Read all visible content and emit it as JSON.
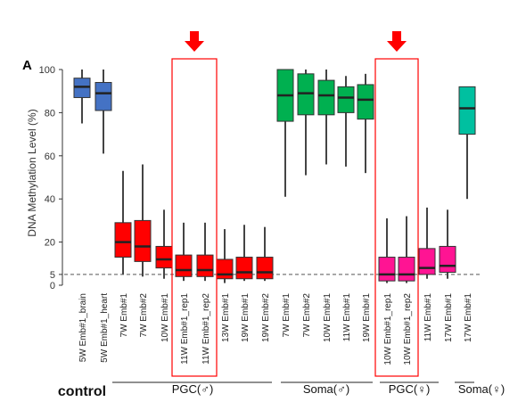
{
  "chart_data": {
    "type": "box",
    "panel_label": "A",
    "ylabel": "DNA Methylation Level (%)",
    "ylim": [
      0,
      100
    ],
    "y_ticks": [
      0,
      5,
      20,
      40,
      60,
      80,
      100
    ],
    "reference_line": 5,
    "categories": [
      {
        "label": "5W Emb#1_brain",
        "group": "control",
        "color": "#4472c4",
        "whisker_low": 75,
        "q1": 87,
        "median": 92,
        "q3": 96,
        "whisker_high": 100
      },
      {
        "label": "5W Emb#1_heart",
        "group": "control",
        "color": "#4472c4",
        "whisker_low": 61,
        "q1": 81,
        "median": 89,
        "q3": 94,
        "whisker_high": 100
      },
      {
        "label": "7W Emb#1",
        "group": "pgc_male",
        "color": "#ff0000",
        "whisker_low": 5,
        "q1": 13,
        "median": 20,
        "q3": 29,
        "whisker_high": 53
      },
      {
        "label": "7W Emb#2",
        "group": "pgc_male",
        "color": "#ff0000",
        "whisker_low": 4,
        "q1": 11,
        "median": 18,
        "q3": 30,
        "whisker_high": 56
      },
      {
        "label": "10W Emb#1",
        "group": "pgc_male",
        "color": "#ff0000",
        "whisker_low": 3,
        "q1": 8,
        "median": 12,
        "q3": 18,
        "whisker_high": 35
      },
      {
        "label": "11W Emb#1_rep1",
        "group": "pgc_male",
        "color": "#ff0000",
        "whisker_low": 2,
        "q1": 4,
        "median": 7,
        "q3": 14,
        "whisker_high": 29
      },
      {
        "label": "11W Emb#1_rep2",
        "group": "pgc_male",
        "color": "#ff0000",
        "whisker_low": 2,
        "q1": 4,
        "median": 7,
        "q3": 14,
        "whisker_high": 29
      },
      {
        "label": "13W Emb#1",
        "group": "pgc_male",
        "color": "#ff0000",
        "whisker_low": 1,
        "q1": 3,
        "median": 5,
        "q3": 12,
        "whisker_high": 26
      },
      {
        "label": "19W Emb#1",
        "group": "pgc_male",
        "color": "#ff0000",
        "whisker_low": 2,
        "q1": 3,
        "median": 6,
        "q3": 13,
        "whisker_high": 28
      },
      {
        "label": "19W Emb#2",
        "group": "pgc_male",
        "color": "#ff0000",
        "whisker_low": 2,
        "q1": 3,
        "median": 6,
        "q3": 13,
        "whisker_high": 27
      },
      {
        "label": "7W Emb#1",
        "group": "soma_male",
        "color": "#00b050",
        "whisker_low": 41,
        "q1": 76,
        "median": 88,
        "q3": 100,
        "whisker_high": 100
      },
      {
        "label": "7W Emb#2",
        "group": "soma_male",
        "color": "#00b050",
        "whisker_low": 51,
        "q1": 79,
        "median": 89,
        "q3": 98,
        "whisker_high": 100
      },
      {
        "label": "10W Emb#1",
        "group": "soma_male",
        "color": "#00b050",
        "whisker_low": 56,
        "q1": 79,
        "median": 88,
        "q3": 95,
        "whisker_high": 100
      },
      {
        "label": "11W Emb#1",
        "group": "soma_male",
        "color": "#00b050",
        "whisker_low": 55,
        "q1": 80,
        "median": 87,
        "q3": 92,
        "whisker_high": 97
      },
      {
        "label": "19W Emb#1",
        "group": "soma_male",
        "color": "#00b050",
        "whisker_low": 52,
        "q1": 77,
        "median": 86,
        "q3": 93,
        "whisker_high": 98
      },
      {
        "label": "10W Emb#1_rep1",
        "group": "pgc_female",
        "color": "#ff1493",
        "whisker_low": 1,
        "q1": 2,
        "median": 5,
        "q3": 13,
        "whisker_high": 31
      },
      {
        "label": "10W Emb#1_rep2",
        "group": "pgc_female",
        "color": "#ff1493",
        "whisker_low": 1,
        "q1": 2,
        "median": 5,
        "q3": 13,
        "whisker_high": 32
      },
      {
        "label": "11W Emb#1",
        "group": "pgc_female",
        "color": "#ff1493",
        "whisker_low": 3,
        "q1": 5,
        "median": 8,
        "q3": 17,
        "whisker_high": 36
      },
      {
        "label": "17W Emb#1",
        "group": "pgc_female",
        "color": "#ff1493",
        "whisker_low": 3,
        "q1": 6,
        "median": 9,
        "q3": 18,
        "whisker_high": 35
      },
      {
        "label": "17W Emb#1",
        "group": "soma_female",
        "color": "#00c0a0",
        "whisker_low": 40,
        "q1": 70,
        "median": 82,
        "q3": 92,
        "whisker_high": 92
      }
    ],
    "groups": [
      {
        "key": "control",
        "label": "control"
      },
      {
        "key": "pgc_male",
        "label": "PGC(♂)"
      },
      {
        "key": "soma_male",
        "label": "Soma(♂)"
      },
      {
        "key": "pgc_female",
        "label": "PGC(♀)"
      },
      {
        "key": "soma_female",
        "label": "Soma(♀)"
      }
    ],
    "highlights": [
      {
        "categories": [
          "11W Emb#1_rep1",
          "11W Emb#1_rep2"
        ],
        "group": "pgc_male",
        "color": "#ff0000"
      },
      {
        "categories": [
          "10W Emb#1_rep1",
          "10W Emb#1_rep2"
        ],
        "group": "pgc_female",
        "color": "#ff0000"
      }
    ],
    "grid": false
  }
}
